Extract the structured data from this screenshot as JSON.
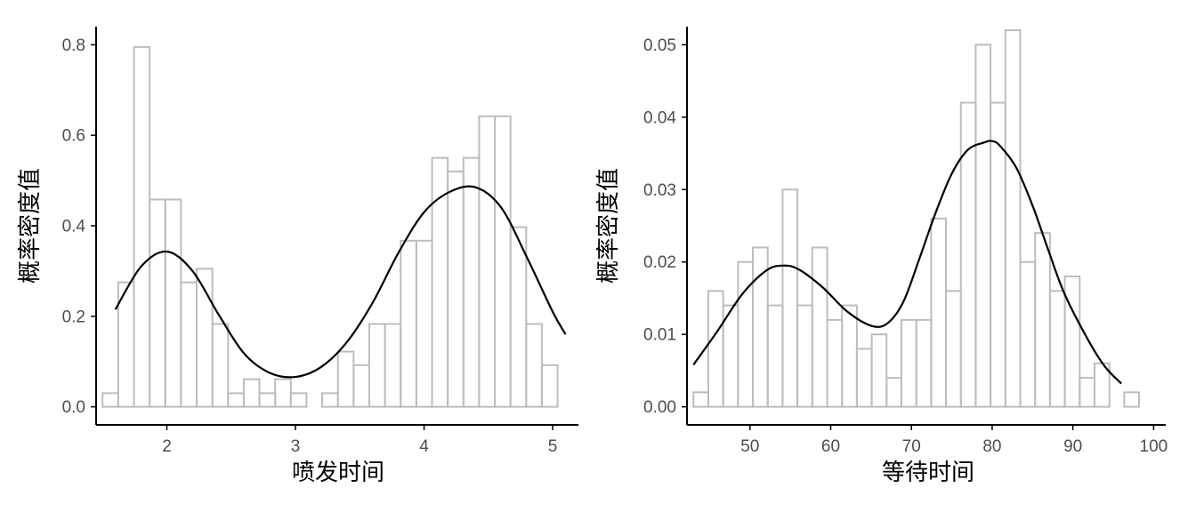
{
  "chart_data": [
    {
      "type": "bar",
      "subtype": "histogram-with-density",
      "xlabel": "喷发时间",
      "ylabel": "概率密度值",
      "xlim": [
        1.45,
        5.2
      ],
      "ylim": [
        -0.04,
        0.84
      ],
      "xticks": [
        2,
        3,
        4,
        5
      ],
      "yticks": [
        0.0,
        0.2,
        0.4,
        0.6,
        0.8
      ],
      "ytick_labels": [
        "0.0",
        "0.2",
        "0.4",
        "0.6",
        "0.8"
      ],
      "grid": false,
      "bin_width": 0.122,
      "bins_start": [
        1.5,
        1.622,
        1.744,
        1.866,
        1.988,
        2.11,
        2.232,
        2.354,
        2.476,
        2.598,
        2.72,
        2.842,
        2.964,
        3.086,
        3.208,
        3.33,
        3.452,
        3.574,
        3.696,
        3.818,
        3.94,
        4.062,
        4.184,
        4.306,
        4.428,
        4.55,
        4.672,
        4.794,
        4.916
      ],
      "values": [
        0.03,
        0.275,
        0.795,
        0.458,
        0.458,
        0.275,
        0.305,
        0.183,
        0.03,
        0.061,
        0.03,
        0.061,
        0.03,
        0.0,
        0.03,
        0.122,
        0.092,
        0.183,
        0.183,
        0.367,
        0.367,
        0.55,
        0.52,
        0.55,
        0.642,
        0.642,
        0.397,
        0.183,
        0.092
      ],
      "density": {
        "x": [
          1.6,
          1.8,
          2.0,
          2.2,
          2.4,
          2.6,
          2.8,
          3.0,
          3.2,
          3.4,
          3.6,
          3.8,
          4.0,
          4.2,
          4.4,
          4.6,
          4.8,
          5.0,
          5.1
        ],
        "y": [
          0.215,
          0.31,
          0.343,
          0.3,
          0.205,
          0.118,
          0.075,
          0.066,
          0.088,
          0.143,
          0.23,
          0.34,
          0.43,
          0.475,
          0.485,
          0.44,
          0.33,
          0.21,
          0.16
        ]
      }
    },
    {
      "type": "bar",
      "subtype": "histogram-with-density",
      "xlabel": "等待时间",
      "ylabel": "概率密度值",
      "xlim": [
        42.2,
        101.5
      ],
      "ylim": [
        -0.0025,
        0.0525
      ],
      "xticks": [
        50,
        60,
        70,
        80,
        90,
        100
      ],
      "yticks": [
        0.0,
        0.01,
        0.02,
        0.03,
        0.04,
        0.05
      ],
      "ytick_labels": [
        "0.00",
        "0.01",
        "0.02",
        "0.03",
        "0.04",
        "0.05"
      ],
      "grid": false,
      "bin_width": 1.84,
      "bins_start": [
        43.0,
        44.84,
        46.68,
        48.52,
        50.36,
        52.2,
        54.04,
        55.88,
        57.72,
        59.56,
        61.4,
        63.24,
        65.08,
        66.92,
        68.76,
        70.6,
        72.44,
        74.28,
        76.12,
        77.96,
        79.8,
        81.64,
        83.48,
        85.32,
        87.16,
        89.0,
        90.84,
        92.68,
        94.52,
        96.36
      ],
      "values": [
        0.002,
        0.016,
        0.014,
        0.02,
        0.022,
        0.014,
        0.03,
        0.014,
        0.022,
        0.012,
        0.014,
        0.008,
        0.01,
        0.004,
        0.012,
        0.012,
        0.026,
        0.016,
        0.042,
        0.05,
        0.042,
        0.052,
        0.02,
        0.024,
        0.016,
        0.018,
        0.004,
        0.006,
        0.0,
        0.002
      ],
      "density": {
        "x": [
          43,
          46,
          49,
          52,
          54,
          56,
          59,
          62,
          65,
          67,
          69,
          71,
          73,
          75,
          77,
          79,
          80,
          81,
          83,
          85,
          87,
          89,
          92,
          94,
          96
        ],
        "y": [
          0.0058,
          0.0105,
          0.0155,
          0.0188,
          0.0195,
          0.019,
          0.0165,
          0.0132,
          0.0112,
          0.0115,
          0.0145,
          0.0205,
          0.0268,
          0.0322,
          0.0355,
          0.0365,
          0.0367,
          0.036,
          0.033,
          0.0278,
          0.0215,
          0.0155,
          0.009,
          0.0055,
          0.0032
        ]
      }
    }
  ]
}
